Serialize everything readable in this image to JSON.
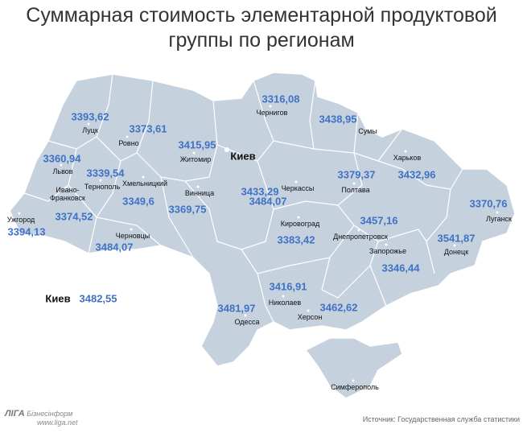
{
  "title_lines": [
    "Суммарная стоимость элементарной продуктовой",
    "группы по регионам"
  ],
  "regions": [
    {
      "name": "Луцк",
      "value": "3393,62"
    },
    {
      "name": "Ровно",
      "value": "3373,61"
    },
    {
      "name": "Чернигов",
      "value": "3316,08"
    },
    {
      "name": "Сумы",
      "value": "3438,95"
    },
    {
      "name": "Львов",
      "value": "3360,94"
    },
    {
      "name": "Житомир",
      "value": "3415,95"
    },
    {
      "name": "Киев",
      "value": "3433,29"
    },
    {
      "name": "Харьков",
      "value": "3432,96"
    },
    {
      "name": "Тернополь",
      "value": "3339,54"
    },
    {
      "name": "Хмельницкий",
      "value": "3349,6"
    },
    {
      "name": "Винница",
      "value": "3369,75"
    },
    {
      "name": "Черкассы",
      "value": "3484,07"
    },
    {
      "name": "Полтава",
      "value": "3379,37"
    },
    {
      "name": "Ивано-Франковск",
      "value": "3374,52"
    },
    {
      "name": "Луганск",
      "value": "3370,76"
    },
    {
      "name": "Ужгород",
      "value": "3394,13"
    },
    {
      "name": "Черновцы",
      "value": "3484,07"
    },
    {
      "name": "Кировоград",
      "value": "3383,42"
    },
    {
      "name": "Днепропетровск",
      "value": "3457,16"
    },
    {
      "name": "Донецк",
      "value": "3541,87"
    },
    {
      "name": "Запорожье",
      "value": "3346,44"
    },
    {
      "name": "Николаев",
      "value": "3416,91"
    },
    {
      "name": "Одесса",
      "value": "3481,97"
    },
    {
      "name": "Херсон",
      "value": "3462,62"
    },
    {
      "name": "Симферополь"
    }
  ],
  "kiev_city": {
    "name": "Киев",
    "value": "3482,55"
  },
  "logo": {
    "brand": "ЛІГА",
    "sub": "Бізнесінформ",
    "url": "www.liga.net"
  },
  "source": "Источник: Государственная служба статистики"
}
